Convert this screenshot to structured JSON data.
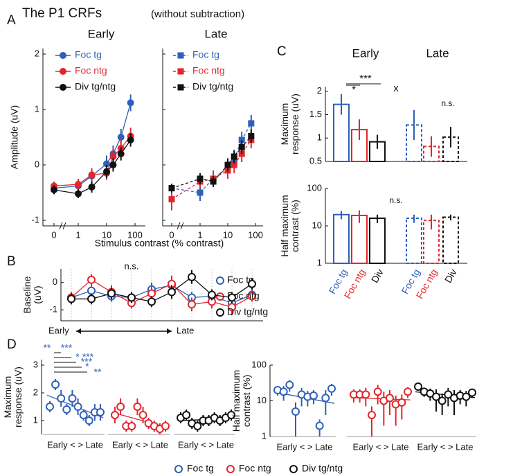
{
  "figure_title": "The P1 CRFs",
  "figure_subtitle": "(without subtraction)",
  "panel_labels": [
    "A",
    "B",
    "C",
    "D"
  ],
  "chart_data": [
    {
      "type": "line",
      "title": "Early",
      "xscale": "log",
      "x": [
        0,
        1,
        3,
        10,
        17,
        32,
        70
      ],
      "xticks": [
        0,
        1,
        10,
        100
      ],
      "ylim": [
        -1.1,
        2.1
      ],
      "yticks": [
        -1,
        0,
        1,
        2
      ],
      "ylabel": "Amplitude (uV)",
      "xlabel": "Stimulus contrast (% contrast)",
      "legend": "upper left",
      "series": [
        {
          "name": "Foc tg",
          "color": "#2f5fb8",
          "marker": "circle",
          "dash": false,
          "values": [
            -0.42,
            -0.38,
            -0.2,
            0.02,
            0.2,
            0.5,
            1.12
          ],
          "errors": [
            0.08,
            0.1,
            0.12,
            0.15,
            0.15,
            0.15,
            0.15
          ]
        },
        {
          "name": "Foc ntg",
          "color": "#e3262d",
          "marker": "circle",
          "dash": false,
          "values": [
            -0.38,
            -0.35,
            -0.18,
            -0.15,
            0.15,
            0.3,
            0.52
          ],
          "errors": [
            0.08,
            0.1,
            0.12,
            0.12,
            0.15,
            0.15,
            0.15
          ]
        },
        {
          "name": "Div tg/ntg",
          "color": "#111111",
          "marker": "circle",
          "dash": false,
          "values": [
            -0.45,
            -0.52,
            -0.4,
            -0.12,
            0.0,
            0.2,
            0.45
          ],
          "errors": [
            0.08,
            0.08,
            0.1,
            0.12,
            0.12,
            0.12,
            0.12
          ]
        }
      ]
    },
    {
      "type": "line",
      "title": "Late",
      "xscale": "log",
      "x": [
        0,
        1,
        3,
        10,
        17,
        32,
        70
      ],
      "xticks": [
        0,
        1,
        10,
        100
      ],
      "ylim": [
        -1.1,
        2.1
      ],
      "yticks": [
        -1,
        0,
        1,
        2
      ],
      "legend": "upper left",
      "series": [
        {
          "name": "Foc tg",
          "color": "#2f5fb8",
          "marker": "square",
          "dash": true,
          "values": [
            -0.42,
            -0.5,
            -0.25,
            -0.05,
            0.1,
            0.45,
            0.75
          ],
          "errors": [
            0.08,
            0.15,
            0.15,
            0.15,
            0.15,
            0.15,
            0.15
          ]
        },
        {
          "name": "Foc ntg",
          "color": "#e3262d",
          "marker": "square",
          "dash": true,
          "values": [
            -0.62,
            -0.3,
            -0.25,
            -0.1,
            0.0,
            0.2,
            0.45
          ],
          "errors": [
            0.2,
            0.12,
            0.12,
            0.15,
            0.15,
            0.15,
            0.15
          ]
        },
        {
          "name": "Div tg/ntg",
          "color": "#111111",
          "marker": "square",
          "dash": true,
          "values": [
            -0.42,
            -0.25,
            -0.3,
            0.0,
            0.15,
            0.32,
            0.52
          ],
          "errors": [
            0.08,
            0.1,
            0.1,
            0.12,
            0.12,
            0.12,
            0.12
          ]
        }
      ]
    },
    {
      "type": "line",
      "categories": [
        null,
        null,
        null,
        null,
        null,
        null,
        null,
        null,
        null,
        null
      ],
      "xlabel_start": "Early",
      "xlabel_end": "Late",
      "ylim": [
        -1.4,
        0.5
      ],
      "yticks": [
        -1,
        0
      ],
      "ylabel": [
        "Baseline",
        "(uV)"
      ],
      "annotation": "n.s.",
      "legend": "right",
      "series": [
        {
          "name": "Foc tg",
          "color": "#2f5fb8",
          "marker": "open",
          "values": [
            -0.55,
            -0.3,
            -0.5,
            -0.55,
            -0.25,
            -0.1,
            -0.55,
            -0.5,
            -0.75,
            -0.45
          ],
          "errors": [
            0.2,
            0.2,
            0.2,
            0.2,
            0.25,
            0.2,
            0.2,
            0.2,
            0.25,
            0.2
          ]
        },
        {
          "name": "Foc ntg",
          "color": "#e3262d",
          "marker": "open",
          "values": [
            -0.55,
            0.1,
            -0.35,
            -0.75,
            -0.4,
            -0.05,
            -0.8,
            -0.7,
            -0.9,
            -0.5
          ],
          "errors": [
            0.2,
            0.2,
            0.25,
            0.2,
            0.25,
            0.3,
            0.25,
            0.25,
            0.3,
            0.2
          ]
        },
        {
          "name": "Div tg/ntg",
          "color": "#111111",
          "marker": "open",
          "values": [
            -0.6,
            -0.6,
            -0.4,
            -0.55,
            -0.7,
            -0.35,
            0.2,
            -0.45,
            -0.55,
            -0.05
          ],
          "errors": [
            0.2,
            0.2,
            0.2,
            0.2,
            0.2,
            0.25,
            0.25,
            0.2,
            0.2,
            0.2
          ]
        }
      ]
    },
    {
      "type": "bar",
      "groups": [
        "Early",
        "Late"
      ],
      "ylim": [
        0.5,
        2.1
      ],
      "yticks": [
        0.5,
        1,
        1.5,
        2
      ],
      "ylabel": [
        "Maximum",
        "response (uV)"
      ],
      "values": [
        1.72,
        1.18,
        0.92,
        1.28,
        0.82,
        1.02
      ],
      "errors": [
        0.22,
        0.22,
        0.15,
        0.32,
        0.22,
        0.22
      ],
      "colors": [
        "#2f5fb8",
        "#e3262d",
        "#111111",
        "#2f5fb8",
        "#e3262d",
        "#111111"
      ],
      "dashed": [
        false,
        false,
        false,
        true,
        true,
        true
      ],
      "annotations": [
        "*",
        "***",
        "x",
        "n.s."
      ]
    },
    {
      "type": "bar",
      "ylog": true,
      "categories": [
        "Foc tg",
        "Foc ntg",
        "Div",
        "Foc tg",
        "Foc ntg",
        "Div"
      ],
      "ylim": [
        1,
        100
      ],
      "yticks": [
        1,
        10,
        100
      ],
      "ylabel": [
        "Half maximum",
        "contrast (%)"
      ],
      "values": [
        20,
        19,
        16,
        16,
        14,
        17
      ],
      "errors": [
        5,
        7,
        4,
        4,
        6,
        3
      ],
      "colors": [
        "#2f5fb8",
        "#e3262d",
        "#111111",
        "#2f5fb8",
        "#e3262d",
        "#111111"
      ],
      "dashed": [
        false,
        false,
        false,
        true,
        true,
        true
      ],
      "annotations": [
        "n.s."
      ]
    },
    {
      "type": "scatter",
      "ylim": [
        0.5,
        3.2
      ],
      "yticks": [
        1,
        2,
        3
      ],
      "ylabel": [
        "Maximum",
        "response (uV)"
      ],
      "xlabel": "Early < > Late",
      "legend": "bottom",
      "annotations": [
        "**",
        "***",
        "*",
        "***",
        "***",
        "*",
        "**"
      ],
      "series": [
        {
          "name": "Foc tg",
          "color": "#2f5fb8",
          "values": [
            1.5,
            2.3,
            1.8,
            1.4,
            1.8,
            1.5,
            1.2,
            1.0,
            1.3,
            1.3
          ],
          "errors": [
            0.2,
            0.2,
            0.3,
            0.2,
            0.3,
            0.3,
            0.2,
            0.2,
            0.3,
            0.3
          ]
        },
        {
          "name": "Foc ntg",
          "color": "#e3262d",
          "values": [
            1.2,
            1.5,
            0.8,
            0.8,
            1.5,
            1.2,
            0.9,
            0.8,
            0.7,
            0.8
          ],
          "errors": [
            0.3,
            0.3,
            0.2,
            0.2,
            0.3,
            0.3,
            0.2,
            0.2,
            0.2,
            0.2
          ]
        },
        {
          "name": "Div tg/ntg",
          "color": "#111111",
          "values": [
            1.1,
            1.2,
            0.9,
            0.8,
            1.0,
            1.0,
            1.1,
            1.0,
            1.1,
            1.2
          ],
          "errors": [
            0.2,
            0.2,
            0.2,
            0.2,
            0.2,
            0.2,
            0.2,
            0.2,
            0.2,
            0.2
          ]
        }
      ]
    },
    {
      "type": "scatter",
      "ylog": true,
      "ylim": [
        1,
        100
      ],
      "yticks": [
        1,
        10,
        100
      ],
      "ylabel": [
        "Half maximum",
        "contrast (%)"
      ],
      "xlabel": "Early < > Late",
      "series": [
        {
          "color": "#2f5fb8",
          "values": [
            20,
            18,
            28,
            5,
            15,
            13,
            14,
            2,
            12,
            22
          ],
          "errors": [
            6,
            8,
            10,
            4,
            8,
            6,
            6,
            1,
            8,
            8
          ]
        },
        {
          "color": "#e3262d",
          "values": [
            15,
            15,
            15,
            4,
            18,
            10,
            12,
            8,
            9,
            18
          ],
          "errors": [
            6,
            6,
            8,
            3,
            10,
            8,
            8,
            6,
            6,
            6
          ]
        },
        {
          "color": "#111111",
          "values": [
            25,
            18,
            16,
            13,
            10,
            15,
            12,
            14,
            13,
            17
          ],
          "errors": [
            4,
            5,
            6,
            8,
            6,
            8,
            8,
            6,
            6,
            5
          ]
        }
      ]
    }
  ]
}
